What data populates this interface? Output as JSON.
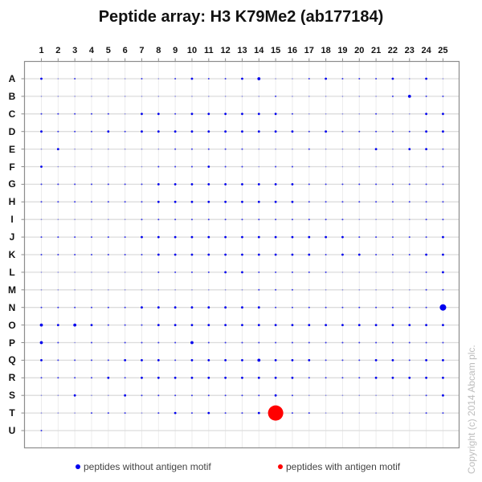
{
  "chart_data": {
    "type": "scatter",
    "subtype": "dot-matrix (peptide array spot intensities)",
    "title": "Peptide array:  H3 K79Me2 (ab177184)",
    "columns": [
      "1",
      "2",
      "3",
      "4",
      "5",
      "6",
      "7",
      "8",
      "9",
      "10",
      "11",
      "12",
      "13",
      "14",
      "15",
      "16",
      "17",
      "18",
      "19",
      "20",
      "21",
      "22",
      "23",
      "24",
      "25"
    ],
    "rows": [
      "A",
      "B",
      "C",
      "D",
      "E",
      "F",
      "G",
      "H",
      "I",
      "J",
      "K",
      "L",
      "M",
      "N",
      "O",
      "P",
      "Q",
      "R",
      "S",
      "T",
      "U"
    ],
    "grid": true,
    "legend_position": "bottom",
    "series": [
      {
        "name": "peptides without antigen motif",
        "color": "#0000ee"
      },
      {
        "name": "peptides with antigen motif",
        "color": "#ff0000"
      }
    ],
    "size_scale_note": "relative spot size 0 (none) to 4 (strong); special large spots listed in highlights",
    "sizes": {
      "A": [
        2,
        0.5,
        1,
        0.5,
        0.5,
        0.5,
        1,
        0.5,
        1,
        2,
        1,
        1,
        2,
        3,
        0.5,
        0.5,
        1,
        2,
        1,
        1,
        1,
        2,
        0.5,
        2,
        0.5
      ],
      "B": [
        0.5,
        0.5,
        0.5,
        0.5,
        0.5,
        0.5,
        0.5,
        0.5,
        0.5,
        0.5,
        0.5,
        0.5,
        0.5,
        0.5,
        1,
        0.5,
        0.5,
        0.5,
        0.5,
        0.5,
        0.5,
        1,
        3,
        1,
        1
      ],
      "C": [
        1,
        1,
        1,
        1,
        1,
        0.5,
        2,
        2,
        1,
        2,
        2,
        2,
        2,
        2,
        2,
        1,
        0.5,
        0.5,
        0.5,
        0.5,
        1,
        0.5,
        0.5,
        2,
        2
      ],
      "D": [
        2,
        1,
        1,
        1,
        2,
        1,
        2,
        2,
        2,
        2,
        2,
        2,
        2,
        2,
        2,
        2,
        1,
        2,
        1,
        1,
        1,
        1,
        1,
        2,
        2
      ],
      "E": [
        0.5,
        2,
        0.5,
        0.5,
        0.5,
        0.5,
        0.5,
        0.5,
        1,
        1,
        1,
        1,
        1,
        0.5,
        0.5,
        0.5,
        1,
        0.5,
        0.5,
        0.5,
        2,
        0.5,
        2,
        2,
        1
      ],
      "F": [
        2,
        0.5,
        0.5,
        0.5,
        0.5,
        0.5,
        0.5,
        1,
        1,
        1,
        2,
        1,
        1,
        0.5,
        1,
        1,
        0.5,
        0.5,
        0.5,
        0.5,
        0.5,
        0.5,
        0.5,
        0.5,
        1
      ],
      "G": [
        1,
        1,
        1,
        1,
        1,
        1,
        1,
        2,
        2,
        2,
        2,
        2,
        2,
        2,
        2,
        2,
        1,
        1,
        1,
        1,
        1,
        1,
        1,
        1,
        1
      ],
      "H": [
        1,
        1,
        1,
        1,
        1,
        1,
        1,
        2,
        2,
        2,
        2,
        2,
        2,
        2,
        2,
        2,
        1,
        1,
        1,
        1,
        1,
        1,
        1,
        1,
        1
      ],
      "I": [
        0.5,
        0.5,
        0.5,
        0.5,
        0.5,
        0.5,
        1,
        1,
        1,
        1,
        1,
        1,
        1,
        1,
        1,
        1,
        1,
        1,
        1,
        0.5,
        0.5,
        0.5,
        0.5,
        1,
        1
      ],
      "J": [
        1,
        1,
        1,
        1,
        1,
        1,
        2,
        2,
        2,
        2,
        2,
        2,
        2,
        2,
        2,
        2,
        2,
        2,
        2,
        1,
        1,
        1,
        1,
        1,
        2
      ],
      "K": [
        1,
        1,
        1,
        1,
        1,
        1,
        1,
        2,
        2,
        2,
        2,
        2,
        2,
        2,
        2,
        2,
        2,
        1,
        2,
        2,
        1,
        1,
        1,
        2,
        2
      ],
      "L": [
        0.5,
        0.5,
        0.5,
        0.5,
        0.5,
        0.5,
        0.5,
        1,
        1,
        1,
        1,
        2,
        2,
        1,
        1,
        1,
        1,
        1,
        0.5,
        0.5,
        0.5,
        0.5,
        0.5,
        1,
        2
      ],
      "M": [
        0.5,
        0.5,
        0.5,
        0.5,
        0.5,
        0.5,
        0.5,
        0.5,
        0.5,
        0.5,
        0.5,
        0.5,
        0.5,
        1,
        1,
        1,
        0.5,
        0.5,
        0.5,
        0.5,
        0.5,
        0.5,
        0.5,
        1,
        1
      ],
      "N": [
        1,
        1,
        1,
        1,
        1,
        1,
        2,
        2,
        2,
        2,
        2,
        2,
        2,
        2,
        1,
        1,
        1,
        1,
        1,
        1,
        1,
        1,
        1,
        1,
        4
      ],
      "O": [
        3,
        2,
        3,
        2,
        1,
        1,
        1,
        2,
        2,
        2,
        2,
        2,
        2,
        2,
        2,
        2,
        2,
        2,
        2,
        2,
        2,
        2,
        2,
        2,
        2
      ],
      "P": [
        3,
        1,
        0.5,
        1,
        0.5,
        1,
        1,
        1,
        1,
        3,
        1,
        1,
        1,
        1,
        1,
        1,
        1,
        1,
        1,
        1,
        1,
        1,
        1,
        1,
        1
      ],
      "Q": [
        2,
        1,
        1,
        1,
        1,
        2,
        2,
        2,
        1,
        2,
        2,
        2,
        2,
        3,
        2,
        2,
        2,
        1,
        1,
        1,
        2,
        2,
        1,
        2,
        2
      ],
      "R": [
        1,
        1,
        1,
        1,
        2,
        1,
        2,
        2,
        2,
        2,
        2,
        2,
        2,
        2,
        2,
        2,
        1,
        1,
        1,
        1,
        2,
        2,
        2,
        2,
        2
      ],
      "S": [
        0.5,
        0.5,
        2,
        0.5,
        0.5,
        2,
        1,
        1,
        1,
        1,
        1,
        1,
        1,
        1,
        2,
        1,
        0.5,
        0.5,
        0.5,
        0.5,
        0.5,
        0.5,
        0.5,
        1,
        2
      ],
      "T": [
        0.5,
        0.5,
        0.5,
        1,
        1,
        1,
        0.5,
        1,
        2,
        1,
        2,
        1,
        1,
        2,
        5,
        1,
        1,
        0.5,
        0.5,
        0.5,
        0.5,
        0.5,
        0.5,
        1,
        1
      ],
      "U": [
        1,
        0,
        0,
        0,
        0,
        0,
        0,
        0,
        0,
        0,
        0,
        0,
        0,
        0,
        0,
        0,
        0,
        0,
        0,
        0,
        0,
        0,
        0,
        0,
        0
      ]
    },
    "highlights": [
      {
        "row": "T",
        "col": "15",
        "series": "peptides with antigen motif",
        "color": "#ff0000",
        "relative_size": "very large"
      },
      {
        "row": "N",
        "col": "25",
        "series": "peptides without antigen motif",
        "color": "#0000ee",
        "relative_size": "large"
      }
    ]
  },
  "legend": {
    "items": [
      {
        "label": "peptides without antigen motif",
        "color": "#0000ee"
      },
      {
        "label": "peptides with antigen motif",
        "color": "#ff0000"
      }
    ]
  },
  "copyright": "Copyright (c) 2014 Abcam plc."
}
